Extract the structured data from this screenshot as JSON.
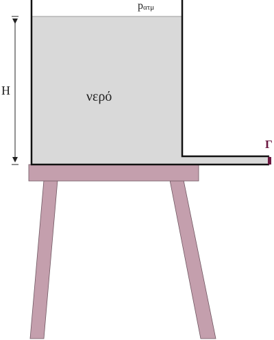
{
  "labels": {
    "pressure_main": "p",
    "pressure_sub": "ατμ",
    "height": "H",
    "liquid": "νερό",
    "point": "Γ"
  },
  "colors": {
    "water": "#d9d9d9",
    "walls": "#111111",
    "table": "#c49fad",
    "table_edge": "#6e5560",
    "point_marker": "#6b1740"
  }
}
